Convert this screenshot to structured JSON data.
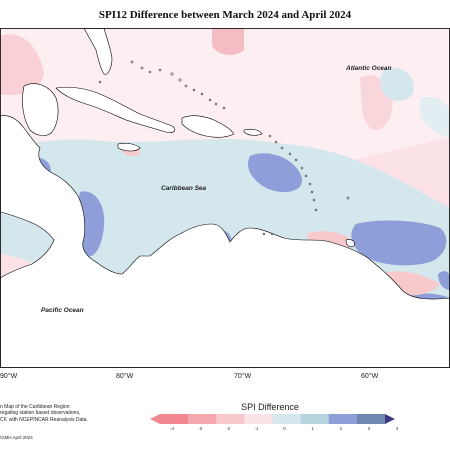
{
  "title": "SPI12 Difference between March 2024 and April 2024",
  "labels": {
    "atlantic": "Atlantic Ocean",
    "caribbean": "Caribbean Sea",
    "pacific": "Pacific Ocean"
  },
  "longitudes": [
    "90°W",
    "80°W",
    "70°W",
    "60°W"
  ],
  "credits": [
    "n Map of the Caribbean Region",
    "regating station based observations,",
    "CF, with NCEP/NCAR Reanalysis Data."
  ],
  "copyright": "CIMH April 2024",
  "legend": {
    "title": "SPI Difference",
    "ticks": [
      "-4",
      "-3",
      "-2",
      "-1",
      "0",
      "1",
      "2",
      "3",
      "4"
    ],
    "colors": [
      "#f1878f",
      "#f4a8ad",
      "#f7c9cc",
      "#fae3e5",
      "#d4e7ec",
      "#b7d3dd",
      "#8d9ed9",
      "#6f89b0",
      "#3b3b7f"
    ]
  }
}
